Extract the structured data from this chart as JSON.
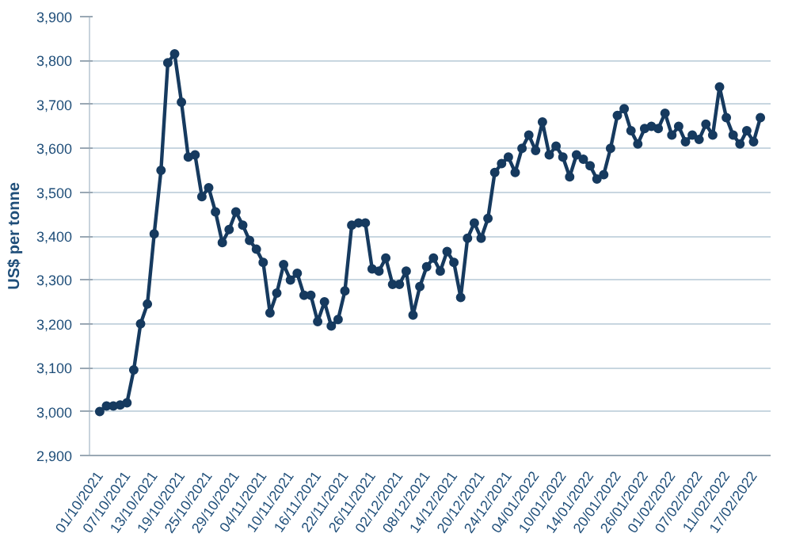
{
  "chart_data": {
    "type": "line",
    "ylabel": "US$ per tonne",
    "categories": [
      "01/10/2021",
      null,
      null,
      null,
      "07/10/2021",
      null,
      null,
      null,
      "13/10/2021",
      null,
      null,
      null,
      "19/10/2021",
      null,
      null,
      null,
      "25/10/2021",
      null,
      null,
      null,
      "29/10/2021",
      null,
      null,
      null,
      "04/11/2021",
      null,
      null,
      null,
      "10/11/2021",
      null,
      null,
      null,
      "16/11/2021",
      null,
      null,
      null,
      "22/11/2021",
      null,
      null,
      null,
      "26/11/2021",
      null,
      null,
      null,
      "02/12/2021",
      null,
      null,
      null,
      "08/12/2021",
      null,
      null,
      null,
      "14/12/2021",
      null,
      null,
      null,
      "20/12/2021",
      null,
      null,
      null,
      "24/12/2021",
      null,
      null,
      null,
      "04/01/2022",
      null,
      null,
      null,
      "10/01/2022",
      null,
      null,
      null,
      "14/01/2022",
      null,
      null,
      null,
      "20/01/2022",
      null,
      null,
      null,
      "26/01/2022",
      null,
      null,
      null,
      "01/02/2022",
      null,
      null,
      null,
      "07/02/2022",
      null,
      null,
      null,
      "11/02/2022",
      null,
      null,
      null,
      "17/02/2022",
      null
    ],
    "series": [
      {
        "color": "#163a5f",
        "values": [
          3000,
          3013,
          3013,
          3015,
          3020,
          3095,
          3200,
          3245,
          3405,
          3550,
          3795,
          3815,
          3705,
          3580,
          3585,
          3490,
          3510,
          3455,
          3385,
          3415,
          3455,
          3425,
          3390,
          3370,
          3340,
          3225,
          3270,
          3335,
          3300,
          3315,
          3265,
          3265,
          3205,
          3250,
          3195,
          3210,
          3275,
          3425,
          3430,
          3430,
          3325,
          3320,
          3350,
          3290,
          3290,
          3320,
          3220,
          3285,
          3330,
          3350,
          3320,
          3365,
          3340,
          3260,
          3395,
          3430,
          3395,
          3440,
          3545,
          3565,
          3580,
          3545,
          3600,
          3630,
          3595,
          3660,
          3585,
          3605,
          3580,
          3535,
          3585,
          3575,
          3560,
          3530,
          3540,
          3600,
          3675,
          3690,
          3640,
          3610,
          3645,
          3650,
          3645,
          3680,
          3630,
          3650,
          3615,
          3630,
          3620,
          3655,
          3630,
          3740,
          3670,
          3630,
          3610,
          3640,
          3615,
          3670
        ]
      }
    ],
    "ylim": [
      2900,
      3900
    ],
    "yticks": [
      {
        "value": 2900,
        "label": "2,900"
      },
      {
        "value": 3000,
        "label": "3,000"
      },
      {
        "value": 3100,
        "label": "3,100"
      },
      {
        "value": 3200,
        "label": "3,200"
      },
      {
        "value": 3300,
        "label": "3,300"
      },
      {
        "value": 3400,
        "label": "3,400"
      },
      {
        "value": 3500,
        "label": "3,500"
      },
      {
        "value": 3600,
        "label": "3,600"
      },
      {
        "value": 3700,
        "label": "3,700"
      },
      {
        "value": 3800,
        "label": "3,800"
      },
      {
        "value": 3900,
        "label": "3,900"
      }
    ],
    "grid": "y",
    "marker": "circle",
    "line_style": "solid"
  }
}
